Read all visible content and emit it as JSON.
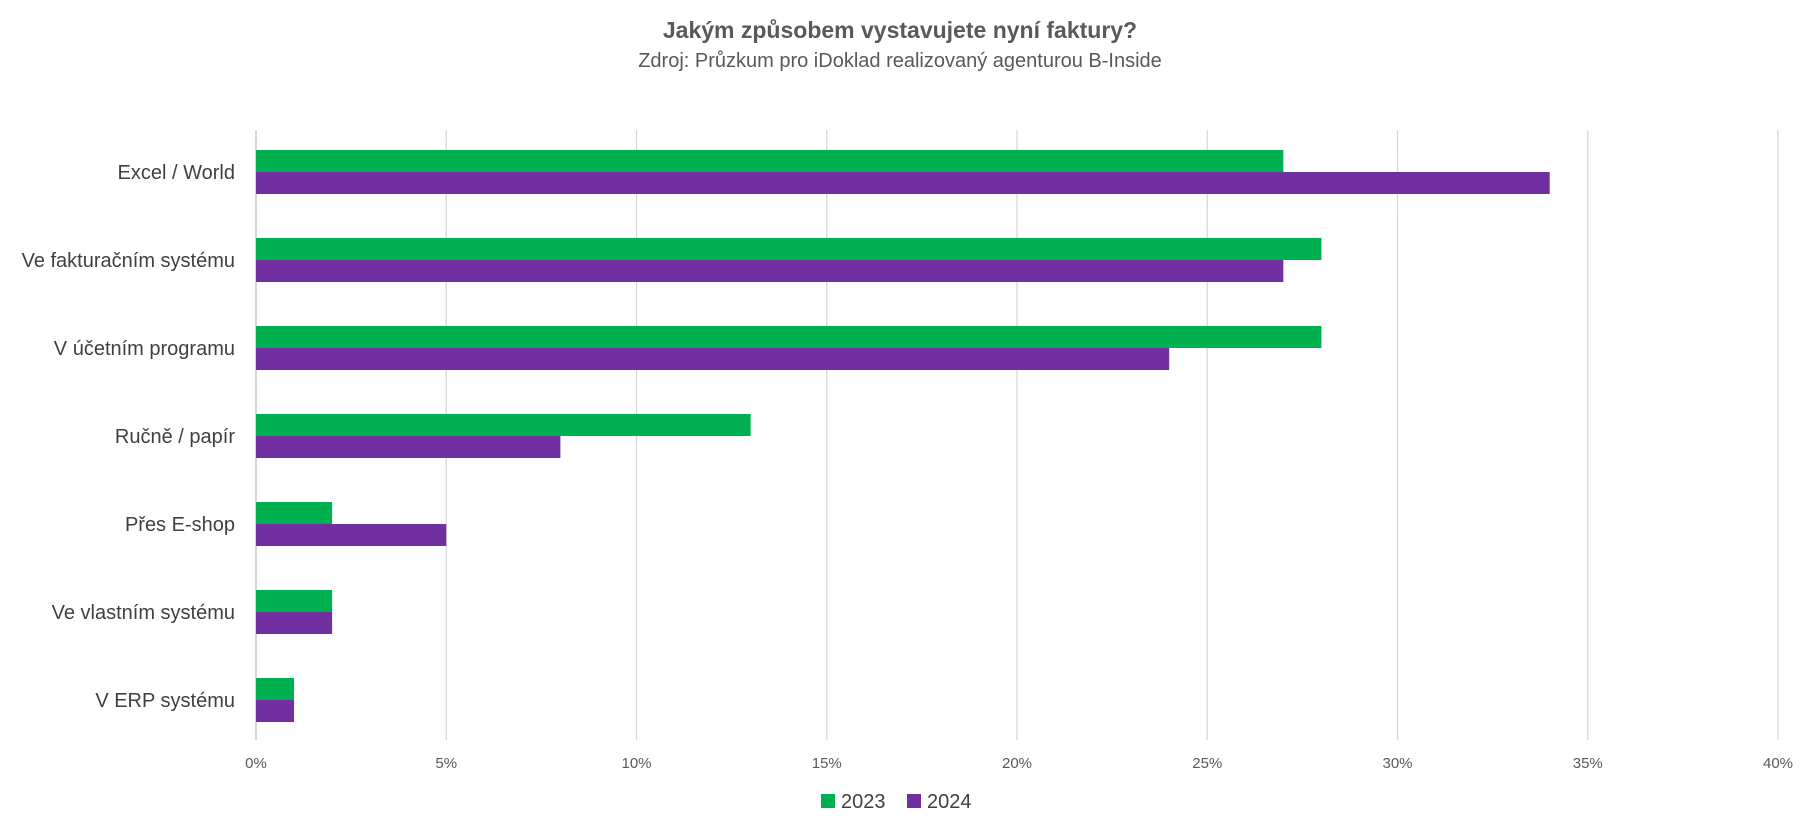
{
  "chart_data": {
    "type": "bar",
    "orientation": "horizontal",
    "title": "Jakým způsobem vystavujete nyní faktury?",
    "subtitle": "Zdroj: Průzkum pro iDoklad realizovaný agenturou B-Inside",
    "categories": [
      "Excel / World",
      "Ve fakturačním systému",
      "V účetním programu",
      "Ručně / papír",
      "Přes E-shop",
      "Ve vlastním systému",
      "V ERP systému"
    ],
    "series": [
      {
        "name": "2023",
        "color": "#00b050",
        "values": [
          27,
          28,
          28,
          13,
          2,
          2,
          1
        ]
      },
      {
        "name": "2024",
        "color": "#7030a0",
        "values": [
          34,
          27,
          24,
          8,
          5,
          2,
          1
        ]
      }
    ],
    "xlim": [
      0,
      40
    ],
    "xticks": [
      0,
      5,
      10,
      15,
      20,
      25,
      30,
      35,
      40
    ],
    "tick_format": "{v}%",
    "grid": true,
    "legend_position": "bottom"
  }
}
